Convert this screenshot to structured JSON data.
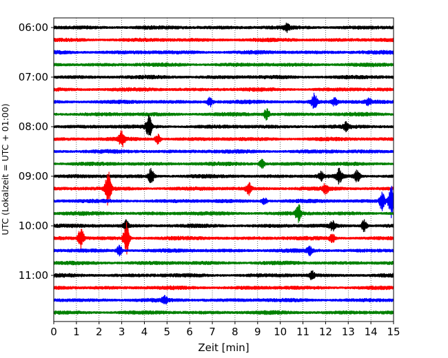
{
  "chart_data": {
    "type": "line",
    "title": "",
    "xlabel": "Zeit  [min]",
    "ylabel": "UTC (Lokalzeit = UTC + 01:00)",
    "xlim": [
      0,
      15
    ],
    "x_ticks": [
      0,
      1,
      2,
      3,
      4,
      5,
      6,
      7,
      8,
      9,
      10,
      11,
      12,
      13,
      14,
      15
    ],
    "x_grid": true,
    "y_tick_labels": [
      "06:00",
      "07:00",
      "08:00",
      "09:00",
      "10:00",
      "11:00"
    ],
    "trace_interval_min": 15,
    "trace_colors": [
      "#000000",
      "#ff0000",
      "#0000ff",
      "#008000"
    ],
    "traces": [
      {
        "start": "06:00",
        "color": "#000000",
        "events": [
          {
            "t": 10.3,
            "amp": 0.25
          }
        ]
      },
      {
        "start": "06:15",
        "color": "#ff0000",
        "events": []
      },
      {
        "start": "06:30",
        "color": "#0000ff",
        "events": []
      },
      {
        "start": "06:45",
        "color": "#008000",
        "events": []
      },
      {
        "start": "07:00",
        "color": "#000000",
        "events": []
      },
      {
        "start": "07:15",
        "color": "#ff0000",
        "events": []
      },
      {
        "start": "07:30",
        "color": "#0000ff",
        "events": [
          {
            "t": 6.9,
            "amp": 0.35
          },
          {
            "t": 11.5,
            "amp": 0.6
          },
          {
            "t": 12.4,
            "amp": 0.3
          },
          {
            "t": 13.9,
            "amp": 0.25
          }
        ]
      },
      {
        "start": "07:45",
        "color": "#008000",
        "events": [
          {
            "t": 9.4,
            "amp": 0.4
          }
        ]
      },
      {
        "start": "08:00",
        "color": "#000000",
        "events": [
          {
            "t": 4.2,
            "amp": 0.9
          },
          {
            "t": 12.9,
            "amp": 0.3
          }
        ]
      },
      {
        "start": "08:15",
        "color": "#ff0000",
        "events": [
          {
            "t": 3.0,
            "amp": 0.6
          },
          {
            "t": 4.6,
            "amp": 0.4
          }
        ]
      },
      {
        "start": "08:30",
        "color": "#0000ff",
        "events": []
      },
      {
        "start": "08:45",
        "color": "#008000",
        "events": [
          {
            "t": 9.2,
            "amp": 0.3
          }
        ]
      },
      {
        "start": "09:00",
        "color": "#000000",
        "events": [
          {
            "t": 4.3,
            "amp": 0.6
          },
          {
            "t": 11.8,
            "amp": 0.3
          },
          {
            "t": 12.6,
            "amp": 0.5
          },
          {
            "t": 13.4,
            "amp": 0.45
          }
        ]
      },
      {
        "start": "09:15",
        "color": "#ff0000",
        "events": [
          {
            "t": 2.4,
            "amp": 1.4
          },
          {
            "t": 8.6,
            "amp": 0.45
          },
          {
            "t": 12.0,
            "amp": 0.35
          }
        ]
      },
      {
        "start": "09:30",
        "color": "#0000ff",
        "events": [
          {
            "t": 9.3,
            "amp": 0.25
          },
          {
            "t": 14.5,
            "amp": 0.7
          },
          {
            "t": 14.9,
            "amp": 1.3
          }
        ]
      },
      {
        "start": "09:45",
        "color": "#008000",
        "events": [
          {
            "t": 10.8,
            "amp": 0.65
          }
        ]
      },
      {
        "start": "10:00",
        "color": "#000000",
        "events": [
          {
            "t": 3.2,
            "amp": 0.45
          },
          {
            "t": 12.3,
            "amp": 0.35
          },
          {
            "t": 13.7,
            "amp": 0.45
          }
        ]
      },
      {
        "start": "10:15",
        "color": "#ff0000",
        "events": [
          {
            "t": 1.2,
            "amp": 0.8
          },
          {
            "t": 3.2,
            "amp": 1.3
          },
          {
            "t": 12.3,
            "amp": 0.3
          }
        ]
      },
      {
        "start": "10:30",
        "color": "#0000ff",
        "events": [
          {
            "t": 2.9,
            "amp": 0.4
          },
          {
            "t": 11.3,
            "amp": 0.3
          }
        ]
      },
      {
        "start": "10:45",
        "color": "#008000",
        "events": []
      },
      {
        "start": "11:00",
        "color": "#000000",
        "events": [
          {
            "t": 11.4,
            "amp": 0.3
          }
        ]
      },
      {
        "start": "11:15",
        "color": "#ff0000",
        "events": []
      },
      {
        "start": "11:30",
        "color": "#0000ff",
        "events": [
          {
            "t": 4.9,
            "amp": 0.25
          }
        ]
      },
      {
        "start": "11:45",
        "color": "#008000",
        "events": []
      }
    ]
  }
}
